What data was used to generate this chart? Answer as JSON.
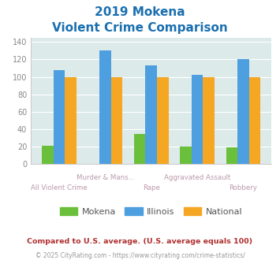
{
  "title_line1": "2019 Mokena",
  "title_line2": "Violent Crime Comparison",
  "categories": [
    "All Violent Crime",
    "Murder & Mans...",
    "Rape",
    "Aggravated Assault",
    "Robbery"
  ],
  "mokena": [
    21,
    0,
    34,
    20,
    19
  ],
  "illinois": [
    108,
    130,
    113,
    102,
    120
  ],
  "national": [
    100,
    100,
    100,
    100,
    100
  ],
  "mokena_color": "#6abf3b",
  "illinois_color": "#4d9fe0",
  "national_color": "#f5a623",
  "ylim": [
    0,
    145
  ],
  "yticks": [
    0,
    20,
    40,
    60,
    80,
    100,
    120,
    140
  ],
  "bg_color": "#ddeaea",
  "title_color": "#1a6faf",
  "footnote1": "Compared to U.S. average. (U.S. average equals 100)",
  "footnote2": "© 2025 CityRating.com - https://www.cityrating.com/crime-statistics/",
  "footnote1_color": "#b03030",
  "footnote2_color": "#999999",
  "footnote2_link_color": "#4488cc",
  "xticklabel_color": "#bb99aa",
  "yticklabel_color": "#888888",
  "legend_text_color": "#555555",
  "grid_color": "#ffffff",
  "cat_upper": [
    false,
    true,
    false,
    true,
    false
  ]
}
